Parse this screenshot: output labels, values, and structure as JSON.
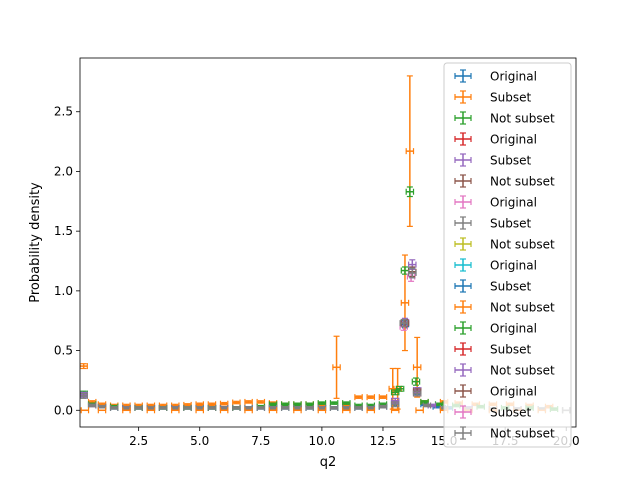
{
  "chart_data": {
    "type": "scatter",
    "error_bars": true,
    "title": "",
    "xlabel": "q2",
    "ylabel": "Probability density",
    "xlim": [
      0.1,
      20.4
    ],
    "ylim": [
      -0.14,
      2.95
    ],
    "xticks": [
      2.5,
      5.0,
      7.5,
      10.0,
      12.5,
      15.0,
      17.5,
      20.0
    ],
    "xtick_labels": [
      "2.5",
      "5.0",
      "7.5",
      "10.0",
      "12.5",
      "15.0",
      "17.5",
      "20.0"
    ],
    "yticks": [
      0.0,
      0.5,
      1.0,
      1.5,
      2.0,
      2.5
    ],
    "ytick_labels": [
      "0.0",
      "0.5",
      "1.0",
      "1.5",
      "2.0",
      "2.5"
    ],
    "legend_position": "upper right",
    "legend": [
      {
        "label": "Original",
        "color": "#1f77b4"
      },
      {
        "label": "Subset",
        "color": "#ff7f0e"
      },
      {
        "label": "Not subset",
        "color": "#2ca02c"
      },
      {
        "label": "Original",
        "color": "#d62728"
      },
      {
        "label": "Subset",
        "color": "#9467bd"
      },
      {
        "label": "Not subset",
        "color": "#8c564b"
      },
      {
        "label": "Original",
        "color": "#e377c2"
      },
      {
        "label": "Subset",
        "color": "#7f7f7f"
      },
      {
        "label": "Not subset",
        "color": "#bcbd22"
      },
      {
        "label": "Original",
        "color": "#17becf"
      },
      {
        "label": "Subset",
        "color": "#1f77b4"
      },
      {
        "label": "Not subset",
        "color": "#ff7f0e"
      },
      {
        "label": "Original",
        "color": "#2ca02c"
      },
      {
        "label": "Subset",
        "color": "#d62728"
      },
      {
        "label": "Not subset",
        "color": "#9467bd"
      },
      {
        "label": "Original",
        "color": "#8c564b"
      },
      {
        "label": "Subset",
        "color": "#e377c2"
      },
      {
        "label": "Not subset",
        "color": "#7f7f7f"
      }
    ],
    "series": [
      {
        "color": "#1f77b4",
        "x_halfwidth": 0.15,
        "points": [
          [
            0.25,
            0.13,
            0.02
          ],
          [
            0.6,
            0.05,
            0.01
          ],
          [
            1.0,
            0.03,
            0.01
          ],
          [
            1.5,
            0.02,
            0.01
          ],
          [
            2.0,
            0.02,
            0.01
          ],
          [
            2.5,
            0.02,
            0.01
          ],
          [
            3.0,
            0.02,
            0.01
          ],
          [
            3.5,
            0.02,
            0.01
          ],
          [
            4.0,
            0.02,
            0.01
          ],
          [
            4.5,
            0.02,
            0.01
          ],
          [
            5.0,
            0.02,
            0.01
          ],
          [
            5.5,
            0.02,
            0.01
          ],
          [
            6.0,
            0.02,
            0.01
          ],
          [
            6.5,
            0.02,
            0.01
          ],
          [
            7.0,
            0.02,
            0.01
          ],
          [
            7.5,
            0.02,
            0.01
          ],
          [
            8.0,
            0.02,
            0.01
          ],
          [
            8.5,
            0.02,
            0.01
          ],
          [
            9.0,
            0.02,
            0.01
          ],
          [
            9.5,
            0.02,
            0.01
          ],
          [
            10.0,
            0.02,
            0.01
          ],
          [
            10.5,
            0.02,
            0.01
          ],
          [
            11.0,
            0.02,
            0.01
          ],
          [
            11.5,
            0.02,
            0.01
          ],
          [
            12.0,
            0.02,
            0.01
          ],
          [
            12.5,
            0.03,
            0.01
          ],
          [
            13.0,
            0.06,
            0.02
          ],
          [
            13.4,
            0.72,
            0.03
          ],
          [
            13.7,
            1.15,
            0.04
          ],
          [
            13.9,
            0.15,
            0.02
          ],
          [
            14.2,
            0.05,
            0.01
          ],
          [
            14.7,
            0.03,
            0.01
          ],
          [
            15.2,
            0.02,
            0.01
          ],
          [
            16.0,
            0.02,
            0.01
          ],
          [
            17.0,
            0.01,
            0.01
          ],
          [
            18.0,
            0.01,
            0.01
          ],
          [
            19.0,
            0.01,
            0.01
          ],
          [
            20.0,
            0.0,
            0.0
          ]
        ]
      },
      {
        "color": "#ff7f0e",
        "x_halfwidth": 0.15,
        "points": [
          [
            0.25,
            0.37,
            0.02
          ],
          [
            0.6,
            0.07,
            0.01
          ],
          [
            1.0,
            0.05,
            0.01
          ],
          [
            1.5,
            0.04,
            0.01
          ],
          [
            2.0,
            0.04,
            0.01
          ],
          [
            2.5,
            0.04,
            0.01
          ],
          [
            3.0,
            0.04,
            0.01
          ],
          [
            3.5,
            0.04,
            0.01
          ],
          [
            4.0,
            0.04,
            0.01
          ],
          [
            4.5,
            0.045,
            0.01
          ],
          [
            5.0,
            0.05,
            0.01
          ],
          [
            5.5,
            0.05,
            0.01
          ],
          [
            6.0,
            0.055,
            0.01
          ],
          [
            6.5,
            0.065,
            0.01
          ],
          [
            7.0,
            0.07,
            0.01
          ],
          [
            7.5,
            0.07,
            0.01
          ],
          [
            8.0,
            0.06,
            0.01
          ],
          [
            8.5,
            0.05,
            0.01
          ],
          [
            9.0,
            0.05,
            0.01
          ],
          [
            9.5,
            0.05,
            0.01
          ],
          [
            10.0,
            0.05,
            0.01
          ],
          [
            10.6,
            0.36,
            0.26
          ],
          [
            11.0,
            0.05,
            0.01
          ],
          [
            11.5,
            0.11,
            0.01
          ],
          [
            12.0,
            0.11,
            0.01
          ],
          [
            12.5,
            0.11,
            0.01
          ],
          [
            12.9,
            0.18,
            0.17
          ],
          [
            13.1,
            0.18,
            0.17
          ],
          [
            13.4,
            0.9,
            0.4
          ],
          [
            13.6,
            2.17,
            0.63
          ],
          [
            13.9,
            0.36,
            0.25
          ],
          [
            14.2,
            0.07,
            0.01
          ],
          [
            15.0,
            0.07,
            0.01
          ],
          [
            15.6,
            0.06,
            0.01
          ],
          [
            16.3,
            0.05,
            0.01
          ],
          [
            17.0,
            0.05,
            0.01
          ],
          [
            17.7,
            0.05,
            0.01
          ],
          [
            18.5,
            0.04,
            0.01
          ],
          [
            19.3,
            0.03,
            0.01
          ],
          [
            20.0,
            0.0,
            0.0
          ]
        ]
      },
      {
        "color": "#2ca02c",
        "x_halfwidth": 0.15,
        "points": [
          [
            0.25,
            0.14,
            0.02
          ],
          [
            0.6,
            0.05,
            0.01
          ],
          [
            1.5,
            0.03,
            0.01
          ],
          [
            2.5,
            0.02,
            0.01
          ],
          [
            3.5,
            0.02,
            0.01
          ],
          [
            4.5,
            0.02,
            0.01
          ],
          [
            5.5,
            0.02,
            0.01
          ],
          [
            6.5,
            0.02,
            0.01
          ],
          [
            7.5,
            0.03,
            0.01
          ],
          [
            8.0,
            0.05,
            0.01
          ],
          [
            8.5,
            0.05,
            0.01
          ],
          [
            9.0,
            0.05,
            0.01
          ],
          [
            9.5,
            0.05,
            0.01
          ],
          [
            10.0,
            0.06,
            0.01
          ],
          [
            10.5,
            0.06,
            0.01
          ],
          [
            11.0,
            0.06,
            0.01
          ],
          [
            11.5,
            0.04,
            0.01
          ],
          [
            12.0,
            0.04,
            0.01
          ],
          [
            12.5,
            0.05,
            0.01
          ],
          [
            13.0,
            0.15,
            0.02
          ],
          [
            13.2,
            0.18,
            0.02
          ],
          [
            13.4,
            1.17,
            0.03
          ],
          [
            13.6,
            1.83,
            0.04
          ],
          [
            13.85,
            0.24,
            0.03
          ],
          [
            14.2,
            0.07,
            0.01
          ],
          [
            14.8,
            0.05,
            0.01
          ],
          [
            15.5,
            0.04,
            0.01
          ],
          [
            16.5,
            0.03,
            0.01
          ],
          [
            17.5,
            0.02,
            0.01
          ],
          [
            18.5,
            0.02,
            0.01
          ],
          [
            19.5,
            0.01,
            0.01
          ],
          [
            20.0,
            0.0,
            0.0
          ]
        ]
      },
      {
        "color": "#9467bd",
        "x_halfwidth": 0.15,
        "points": [
          [
            0.25,
            0.13,
            0.02
          ],
          [
            0.6,
            0.04,
            0.01
          ],
          [
            2.0,
            0.02,
            0.01
          ],
          [
            4.0,
            0.02,
            0.01
          ],
          [
            6.0,
            0.02,
            0.01
          ],
          [
            8.0,
            0.02,
            0.01
          ],
          [
            10.0,
            0.02,
            0.01
          ],
          [
            12.0,
            0.02,
            0.01
          ],
          [
            13.0,
            0.08,
            0.02
          ],
          [
            13.4,
            0.74,
            0.03
          ],
          [
            13.7,
            1.22,
            0.04
          ],
          [
            13.9,
            0.17,
            0.02
          ],
          [
            14.5,
            0.04,
            0.01
          ],
          [
            16.0,
            0.02,
            0.01
          ],
          [
            18.0,
            0.01,
            0.01
          ],
          [
            20.0,
            0.0,
            0.0
          ]
        ]
      },
      {
        "color": "#e377c2",
        "x_halfwidth": 0.15,
        "points": [
          [
            13.35,
            0.7,
            0.03
          ],
          [
            13.65,
            1.12,
            0.04
          ],
          [
            13.9,
            0.14,
            0.02
          ]
        ]
      },
      {
        "color": "#8c564b",
        "x_halfwidth": 0.15,
        "points": [
          [
            13.4,
            0.73,
            0.03
          ],
          [
            13.7,
            1.16,
            0.04
          ],
          [
            13.9,
            0.16,
            0.02
          ]
        ]
      },
      {
        "color": "#7f7f7f",
        "x_halfwidth": 0.15,
        "points": [
          [
            0.25,
            0.12,
            0.02
          ],
          [
            0.6,
            0.04,
            0.01
          ],
          [
            1.0,
            0.03,
            0.01
          ],
          [
            1.5,
            0.02,
            0.01
          ],
          [
            2.0,
            0.02,
            0.01
          ],
          [
            2.5,
            0.02,
            0.01
          ],
          [
            3.0,
            0.02,
            0.01
          ],
          [
            3.5,
            0.02,
            0.01
          ],
          [
            4.0,
            0.02,
            0.01
          ],
          [
            4.5,
            0.02,
            0.01
          ],
          [
            5.0,
            0.02,
            0.01
          ],
          [
            5.5,
            0.02,
            0.01
          ],
          [
            6.0,
            0.02,
            0.01
          ],
          [
            6.5,
            0.02,
            0.01
          ],
          [
            7.0,
            0.02,
            0.01
          ],
          [
            7.5,
            0.02,
            0.01
          ],
          [
            8.0,
            0.02,
            0.01
          ],
          [
            8.5,
            0.02,
            0.01
          ],
          [
            9.0,
            0.02,
            0.01
          ],
          [
            9.5,
            0.02,
            0.01
          ],
          [
            10.0,
            0.02,
            0.01
          ],
          [
            10.5,
            0.02,
            0.01
          ],
          [
            11.0,
            0.02,
            0.01
          ],
          [
            11.5,
            0.02,
            0.01
          ],
          [
            12.0,
            0.02,
            0.01
          ],
          [
            12.5,
            0.03,
            0.01
          ],
          [
            13.0,
            0.05,
            0.02
          ],
          [
            13.35,
            0.73,
            0.03
          ],
          [
            13.7,
            1.15,
            0.04
          ],
          [
            13.9,
            0.14,
            0.02
          ],
          [
            14.3,
            0.04,
            0.01
          ],
          [
            15.0,
            0.02,
            0.01
          ],
          [
            16.0,
            0.01,
            0.01
          ],
          [
            17.0,
            0.01,
            0.01
          ],
          [
            18.0,
            0.01,
            0.01
          ],
          [
            19.0,
            0.01,
            0.01
          ],
          [
            20.0,
            0.0,
            0.0
          ]
        ]
      },
      {
        "color": "#ff7f0e",
        "x_halfwidth": 0.15,
        "points": [
          [
            0.3,
            0.0,
            0.0
          ],
          [
            1.0,
            0.0,
            0.0
          ],
          [
            2.0,
            0.0,
            0.0
          ],
          [
            3.0,
            0.0,
            0.0
          ],
          [
            4.0,
            0.0,
            0.0
          ],
          [
            5.0,
            0.0,
            0.0
          ],
          [
            6.0,
            0.0,
            0.0
          ],
          [
            7.0,
            0.0,
            0.0
          ],
          [
            8.0,
            0.0,
            0.0
          ],
          [
            9.0,
            0.0,
            0.0
          ],
          [
            10.0,
            0.0,
            0.0
          ],
          [
            11.0,
            0.0,
            0.0
          ],
          [
            12.0,
            0.0,
            0.0
          ],
          [
            13.0,
            0.0,
            0.0
          ],
          [
            14.0,
            0.0,
            0.0
          ],
          [
            15.0,
            0.0,
            0.0
          ],
          [
            16.0,
            0.0,
            0.0
          ],
          [
            17.0,
            0.0,
            0.0
          ],
          [
            18.0,
            0.0,
            0.0
          ],
          [
            19.0,
            0.0,
            0.0
          ]
        ]
      }
    ]
  }
}
